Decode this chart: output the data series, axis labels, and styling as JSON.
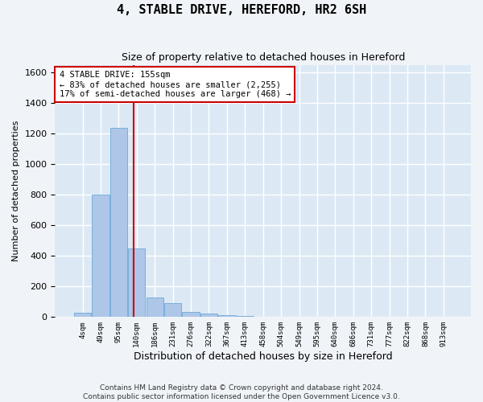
{
  "title": "4, STABLE DRIVE, HEREFORD, HR2 6SH",
  "subtitle": "Size of property relative to detached houses in Hereford",
  "xlabel": "Distribution of detached houses by size in Hereford",
  "ylabel": "Number of detached properties",
  "footer_line1": "Contains HM Land Registry data © Crown copyright and database right 2024.",
  "footer_line2": "Contains public sector information licensed under the Open Government Licence v3.0.",
  "bin_labels": [
    "4sqm",
    "49sqm",
    "95sqm",
    "140sqm",
    "186sqm",
    "231sqm",
    "276sqm",
    "322sqm",
    "367sqm",
    "413sqm",
    "458sqm",
    "504sqm",
    "549sqm",
    "595sqm",
    "640sqm",
    "686sqm",
    "731sqm",
    "777sqm",
    "822sqm",
    "868sqm",
    "913sqm"
  ],
  "bar_heights": [
    30,
    800,
    1240,
    450,
    130,
    90,
    35,
    25,
    10,
    5,
    0,
    0,
    0,
    0,
    0,
    0,
    0,
    0,
    0,
    0,
    0
  ],
  "bar_color": "#aec6e8",
  "bar_edge_color": "#5a9fd4",
  "ylim": [
    0,
    1650
  ],
  "yticks": [
    0,
    200,
    400,
    600,
    800,
    1000,
    1200,
    1400,
    1600
  ],
  "annotation_line1": "4 STABLE DRIVE: 155sqm",
  "annotation_line2": "← 83% of detached houses are smaller (2,255)",
  "annotation_line3": "17% of semi-detached houses are larger (468) →",
  "vline_color": "#cc0000",
  "annotation_box_color": "#ffffff",
  "annotation_box_edgecolor": "#cc0000",
  "background_color": "#dce9f5",
  "fig_background_color": "#f0f4f8",
  "grid_color": "#ffffff"
}
